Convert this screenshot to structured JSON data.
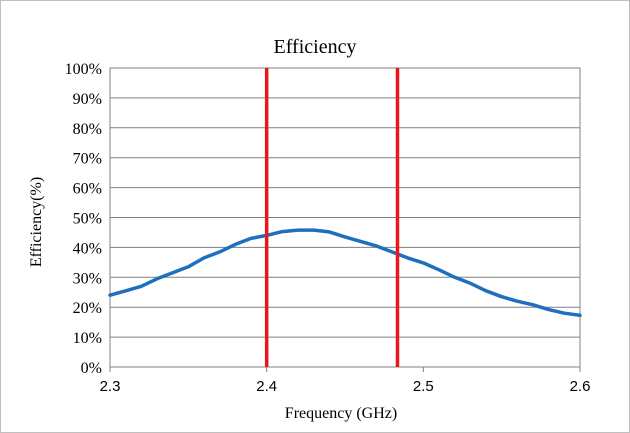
{
  "chart_data": {
    "type": "line",
    "title": "Efficiency",
    "xlabel": "Frequency (GHz)",
    "ylabel": "Efficiency(%)",
    "xlim": [
      2.3,
      2.6
    ],
    "ylim": [
      0,
      100
    ],
    "x_ticks": [
      "2.3",
      "2.4",
      "2.5",
      "2.6"
    ],
    "y_ticks": [
      "0%",
      "10%",
      "20%",
      "30%",
      "40%",
      "50%",
      "60%",
      "70%",
      "80%",
      "90%",
      "100%"
    ],
    "grid": "horizontal",
    "series": [
      {
        "color": "#1f6fbf",
        "x": [
          2.3,
          2.31,
          2.32,
          2.33,
          2.34,
          2.35,
          2.36,
          2.37,
          2.38,
          2.39,
          2.4,
          2.41,
          2.42,
          2.43,
          2.44,
          2.45,
          2.46,
          2.47,
          2.48,
          2.49,
          2.5,
          2.51,
          2.52,
          2.53,
          2.54,
          2.55,
          2.56,
          2.57,
          2.58,
          2.59,
          2.6
        ],
        "y": [
          24.0,
          25.5,
          27.0,
          29.5,
          31.5,
          33.5,
          36.5,
          38.5,
          41.0,
          43.0,
          44.0,
          45.3,
          45.8,
          45.8,
          45.2,
          43.5,
          42.0,
          40.5,
          38.5,
          36.5,
          34.8,
          32.5,
          30.0,
          28.0,
          25.5,
          23.5,
          22.0,
          20.8,
          19.2,
          18.0,
          17.3
        ]
      }
    ],
    "vertical_markers": [
      {
        "x": 2.4,
        "color": "#e8171e"
      },
      {
        "x": 2.4835,
        "color": "#e8171e"
      }
    ]
  }
}
